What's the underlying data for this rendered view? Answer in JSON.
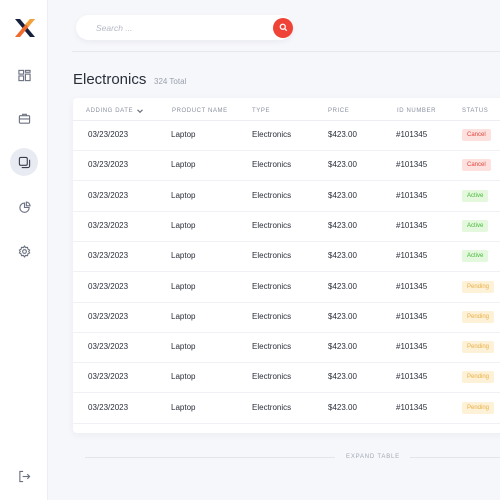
{
  "brand": {
    "logo_colors": [
      "#16203d",
      "#f06a2d",
      "#f2a23a"
    ]
  },
  "sidebar": {
    "items": [
      {
        "icon": "dashboard-icon",
        "active": false
      },
      {
        "icon": "briefcase-icon",
        "active": false
      },
      {
        "icon": "products-icon",
        "active": true
      },
      {
        "icon": "pie-chart-icon",
        "active": false
      },
      {
        "icon": "gear-icon",
        "active": false
      }
    ],
    "logout_icon": "logout-icon"
  },
  "search": {
    "placeholder": "Search ...",
    "value": "",
    "icon": "search-icon",
    "accent": "#ef4337"
  },
  "page": {
    "title": "Electronics",
    "total": "324 Total"
  },
  "table": {
    "columns": [
      "Adding Date",
      "Product Name",
      "Type",
      "Price",
      "ID Number",
      "Status"
    ],
    "sort_column": "Adding Date",
    "rows": [
      {
        "date": "03/23/2023",
        "name": "Laptop",
        "type": "Electronics",
        "price": "$423.00",
        "id": "#101345",
        "status": "Cancel"
      },
      {
        "date": "03/23/2023",
        "name": "Laptop",
        "type": "Electronics",
        "price": "$423.00",
        "id": "#101345",
        "status": "Cancel"
      },
      {
        "date": "03/23/2023",
        "name": "Laptop",
        "type": "Electronics",
        "price": "$423.00",
        "id": "#101345",
        "status": "Active"
      },
      {
        "date": "03/23/2023",
        "name": "Laptop",
        "type": "Electronics",
        "price": "$423.00",
        "id": "#101345",
        "status": "Active"
      },
      {
        "date": "03/23/2023",
        "name": "Laptop",
        "type": "Electronics",
        "price": "$423.00",
        "id": "#101345",
        "status": "Active"
      },
      {
        "date": "03/23/2023",
        "name": "Laptop",
        "type": "Electronics",
        "price": "$423.00",
        "id": "#101345",
        "status": "Pending"
      },
      {
        "date": "03/23/2023",
        "name": "Laptop",
        "type": "Electronics",
        "price": "$423.00",
        "id": "#101345",
        "status": "Pending"
      },
      {
        "date": "03/23/2023",
        "name": "Laptop",
        "type": "Electronics",
        "price": "$423.00",
        "id": "#101345",
        "status": "Pending"
      },
      {
        "date": "03/23/2023",
        "name": "Laptop",
        "type": "Electronics",
        "price": "$423.00",
        "id": "#101345",
        "status": "Pending"
      },
      {
        "date": "03/23/2023",
        "name": "Laptop",
        "type": "Electronics",
        "price": "$423.00",
        "id": "#101345",
        "status": "Pending"
      }
    ]
  },
  "expand_label": "Expand Table",
  "status_colors": {
    "Cancel": "#e0453b",
    "Active": "#48b83a",
    "Pending": "#e9b043"
  }
}
